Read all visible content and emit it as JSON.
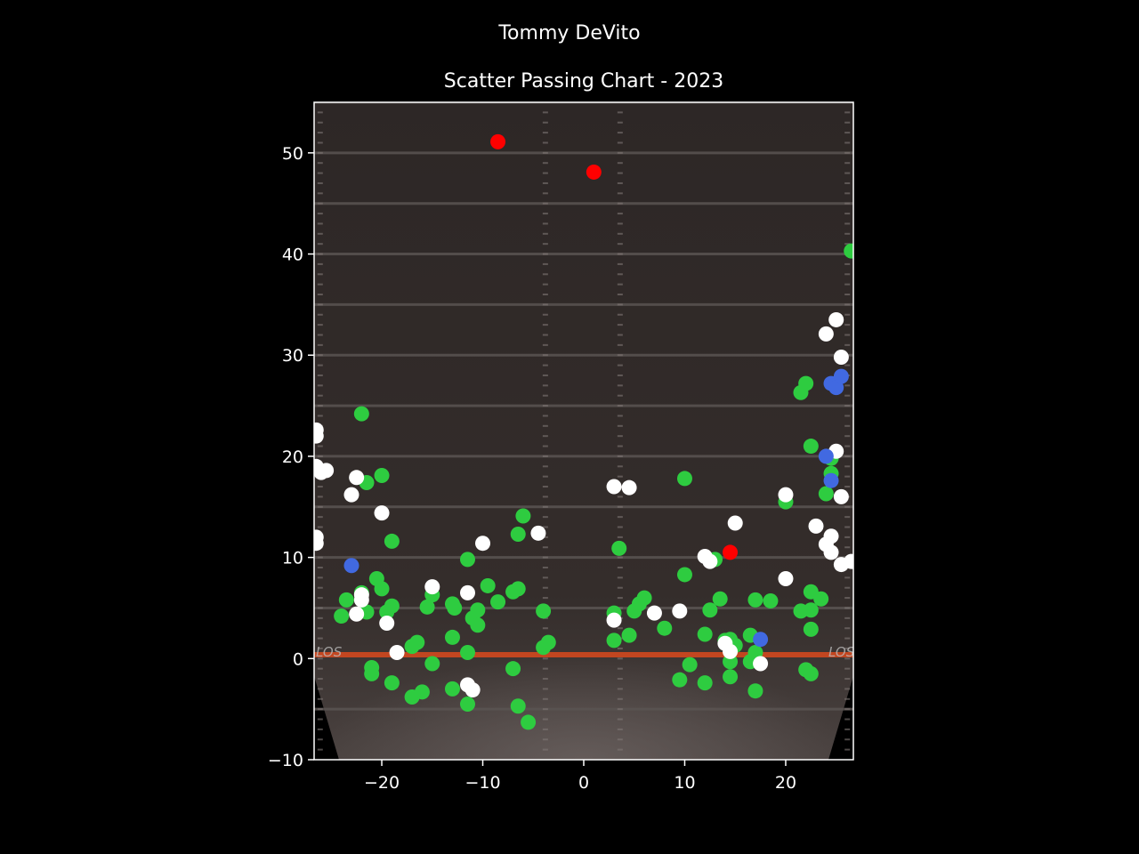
{
  "chart_data": {
    "type": "scatter",
    "title": "Tommy DeVito",
    "subtitle": "Scatter Passing Chart - 2023",
    "xlabel": "",
    "ylabel": "",
    "xlim": [
      -26.7,
      26.7
    ],
    "ylim": [
      -10,
      55
    ],
    "xticks": [
      -20,
      -10,
      0,
      10,
      20
    ],
    "yticks": [
      -10,
      0,
      10,
      20,
      30,
      40,
      50
    ],
    "grid": false,
    "background": "football field image",
    "field_marker_text": "LOS",
    "colors": {
      "complete": "#2ecc40",
      "incomplete": "#ffffff",
      "interception": "#ff0000",
      "touchdown": "#4169e1",
      "axes": "#ffffff",
      "background": "#000000",
      "line_of_scrimmage": "#d0481e"
    },
    "series": [
      {
        "color": "#2ecc40",
        "points": [
          [
            -22,
            24.2
          ],
          [
            -21.5,
            17.4
          ],
          [
            -20,
            18.1
          ],
          [
            -19,
            11.6
          ],
          [
            -20.5,
            7.9
          ],
          [
            -20,
            6.9
          ],
          [
            -19,
            5.2
          ],
          [
            -19.5,
            4.6
          ],
          [
            -23.5,
            5.8
          ],
          [
            -24,
            4.2
          ],
          [
            -21.5,
            4.6
          ],
          [
            -22,
            6.5
          ],
          [
            -21,
            -0.9
          ],
          [
            -21,
            -1.5
          ],
          [
            -19,
            -2.4
          ],
          [
            -17,
            -3.8
          ],
          [
            -16.5,
            1.6
          ],
          [
            -17,
            1.2
          ],
          [
            -16,
            -3.3
          ],
          [
            -15,
            -0.5
          ],
          [
            -15,
            6.3
          ],
          [
            -15.5,
            5.1
          ],
          [
            -13,
            5.4
          ],
          [
            -12.8,
            5
          ],
          [
            -13,
            2.1
          ],
          [
            -13,
            -3
          ],
          [
            -11.5,
            0.6
          ],
          [
            -11.5,
            -4.5
          ],
          [
            -11.5,
            9.8
          ],
          [
            -11,
            4
          ],
          [
            -10.5,
            4.8
          ],
          [
            -10.5,
            3.3
          ],
          [
            -9.5,
            7.2
          ],
          [
            -8.5,
            5.6
          ],
          [
            -7,
            6.6
          ],
          [
            -6.5,
            6.9
          ],
          [
            -6,
            14.1
          ],
          [
            -6.5,
            12.3
          ],
          [
            -7,
            -1
          ],
          [
            -6.5,
            -4.7
          ],
          [
            -5.5,
            -6.3
          ],
          [
            -4,
            4.7
          ],
          [
            -4,
            1.1
          ],
          [
            -3.5,
            1.6
          ],
          [
            3,
            4.5
          ],
          [
            3.5,
            10.9
          ],
          [
            3,
            1.8
          ],
          [
            4.5,
            2.3
          ],
          [
            5,
            4.7
          ],
          [
            5.5,
            5.4
          ],
          [
            6,
            6
          ],
          [
            8,
            3
          ],
          [
            10,
            17.8
          ],
          [
            10,
            8.3
          ],
          [
            10.5,
            -0.6
          ],
          [
            9.5,
            -2.1
          ],
          [
            12,
            2.4
          ],
          [
            12,
            -2.4
          ],
          [
            12.5,
            4.8
          ],
          [
            13,
            9.8
          ],
          [
            13.5,
            5.9
          ],
          [
            14,
            1.8
          ],
          [
            14.5,
            1.9
          ],
          [
            15,
            1.3
          ],
          [
            14.5,
            -0.3
          ],
          [
            14.5,
            -1.8
          ],
          [
            16.5,
            2.3
          ],
          [
            17,
            0.6
          ],
          [
            16.5,
            -0.3
          ],
          [
            17,
            -3.2
          ],
          [
            17,
            5.8
          ],
          [
            18.5,
            5.7
          ],
          [
            20,
            15.5
          ],
          [
            21.5,
            26.3
          ],
          [
            22,
            27.2
          ],
          [
            22.5,
            21
          ],
          [
            21.5,
            4.7
          ],
          [
            22.5,
            4.8
          ],
          [
            22.5,
            6.6
          ],
          [
            23.5,
            5.9
          ],
          [
            22.5,
            2.9
          ],
          [
            22,
            -1.1
          ],
          [
            22.5,
            -1.5
          ],
          [
            24,
            16.3
          ],
          [
            24.5,
            18.3
          ],
          [
            24.5,
            19.8
          ],
          [
            26.5,
            40.3
          ]
        ]
      },
      {
        "color": "#ffffff",
        "points": [
          [
            -26.5,
            22.6
          ],
          [
            -26.5,
            22
          ],
          [
            -26.5,
            19
          ],
          [
            -26,
            18.4
          ],
          [
            -25.5,
            18.6
          ],
          [
            -22.5,
            17.9
          ],
          [
            -23,
            16.2
          ],
          [
            -20,
            14.4
          ],
          [
            -26.5,
            12
          ],
          [
            -26.5,
            11.4
          ],
          [
            -22,
            6.3
          ],
          [
            -22,
            5.8
          ],
          [
            -22.5,
            4.4
          ],
          [
            -19.5,
            3.5
          ],
          [
            -18.5,
            0.6
          ],
          [
            -15,
            7.1
          ],
          [
            -11.5,
            6.5
          ],
          [
            -11.5,
            -2.6
          ],
          [
            -11,
            -3.1
          ],
          [
            -10,
            11.4
          ],
          [
            -4.5,
            12.4
          ],
          [
            3,
            17
          ],
          [
            4.5,
            16.9
          ],
          [
            3,
            3.8
          ],
          [
            7,
            4.5
          ],
          [
            9.5,
            4.7
          ],
          [
            12,
            10.1
          ],
          [
            12.5,
            9.6
          ],
          [
            15,
            13.4
          ],
          [
            14,
            1.5
          ],
          [
            14.5,
            0.7
          ],
          [
            17.5,
            -0.5
          ],
          [
            20,
            16.2
          ],
          [
            20,
            7.9
          ],
          [
            23,
            13.1
          ],
          [
            24.5,
            12.1
          ],
          [
            24,
            11.3
          ],
          [
            24.5,
            10.5
          ],
          [
            25.5,
            9.3
          ],
          [
            26.5,
            9.6
          ],
          [
            25.5,
            16
          ],
          [
            25,
            20.5
          ],
          [
            24,
            32.1
          ],
          [
            25,
            33.5
          ],
          [
            25.5,
            29.8
          ]
        ]
      },
      {
        "color": "#ff0000",
        "points": [
          [
            -8.5,
            51.1
          ],
          [
            1,
            48.1
          ],
          [
            14.5,
            10.5
          ]
        ]
      },
      {
        "color": "#4169e1",
        "points": [
          [
            -23,
            9.2
          ],
          [
            17.5,
            1.9
          ],
          [
            24,
            20
          ],
          [
            24.5,
            17.6
          ],
          [
            24.5,
            27.2
          ],
          [
            25,
            26.8
          ],
          [
            25.5,
            27.9
          ]
        ]
      }
    ]
  }
}
